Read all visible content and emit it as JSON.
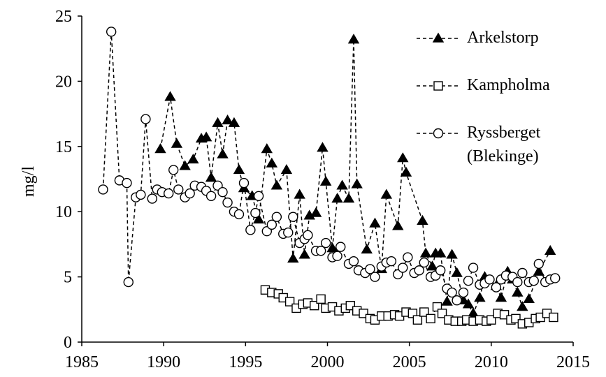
{
  "chart_data": {
    "type": "line",
    "ylabel": "mg/l",
    "xlim": [
      1985,
      2015
    ],
    "xticks": [
      1985,
      1990,
      1995,
      2000,
      2005,
      2010,
      2015
    ],
    "ylim": [
      0,
      25
    ],
    "yticks": [
      0,
      5,
      10,
      15,
      20,
      25
    ],
    "grid": false,
    "legend": "top-right",
    "series": [
      {
        "name": "Arkelstorp",
        "color": "#000000",
        "marker": "triangle",
        "x": [
          1989.8,
          1990.4,
          1990.8,
          1991.3,
          1991.8,
          1992.3,
          1992.6,
          1992.9,
          1993.3,
          1993.6,
          1993.9,
          1994.3,
          1994.6,
          1994.9,
          1995.4,
          1995.8,
          1996.3,
          1996.6,
          1996.9,
          1997.5,
          1997.9,
          1998.3,
          1998.6,
          1998.9,
          1999.3,
          1999.7,
          1999.9,
          2000.3,
          2000.6,
          2000.9,
          2001.3,
          2001.6,
          2001.8,
          2002.4,
          2002.9,
          2003.3,
          2003.6,
          2004.3,
          2004.6,
          2004.8,
          2005.8,
          2006.0,
          2006.4,
          2006.6,
          2006.9,
          2007.3,
          2007.6,
          2007.9,
          2008.3,
          2008.6,
          2008.9,
          2009.3,
          2009.6,
          2010.3,
          2010.6,
          2011.0,
          2011.3,
          2011.6,
          2011.9,
          2012.3,
          2012.9,
          2013.6
        ],
        "values": [
          14.8,
          18.8,
          15.2,
          13.5,
          14.0,
          15.6,
          15.7,
          12.6,
          16.8,
          14.4,
          17.0,
          16.8,
          13.2,
          11.8,
          11.2,
          9.4,
          14.8,
          13.7,
          12.0,
          13.2,
          6.4,
          11.3,
          6.7,
          9.7,
          9.9,
          14.9,
          12.3,
          7.2,
          11.0,
          12.0,
          11.0,
          23.2,
          12.1,
          7.1,
          9.1,
          5.6,
          11.3,
          8.9,
          14.1,
          13.0,
          9.3,
          6.8,
          5.8,
          6.8,
          6.8,
          3.1,
          6.7,
          5.3,
          3.2,
          2.9,
          2.2,
          3.4,
          5.0,
          4.3,
          3.4,
          5.4,
          4.8,
          3.8,
          2.7,
          3.3,
          5.4,
          7.0
        ]
      },
      {
        "name": "Kampholma",
        "color": "#000000",
        "marker": "square",
        "x": [
          1996.2,
          1996.6,
          1997.0,
          1997.3,
          1997.7,
          1998.1,
          1998.5,
          1998.8,
          1999.2,
          1999.6,
          1999.9,
          2000.3,
          2000.7,
          2001.1,
          2001.4,
          2001.8,
          2002.2,
          2002.6,
          2002.9,
          2003.3,
          2003.7,
          2004.1,
          2004.4,
          2004.8,
          2005.2,
          2005.5,
          2005.9,
          2006.3,
          2006.7,
          2007.0,
          2007.4,
          2007.8,
          2008.2,
          2008.5,
          2008.9,
          2009.3,
          2009.7,
          2010.0,
          2010.4,
          2010.8,
          2011.2,
          2011.5,
          2011.9,
          2012.3,
          2012.7,
          2013.0,
          2013.4,
          2013.8
        ],
        "values": [
          4.0,
          3.8,
          3.7,
          3.4,
          3.1,
          2.6,
          2.9,
          3.0,
          2.8,
          3.3,
          2.6,
          2.7,
          2.4,
          2.6,
          2.8,
          2.4,
          2.2,
          1.8,
          1.7,
          2.0,
          2.0,
          2.1,
          2.0,
          2.3,
          2.2,
          1.7,
          2.3,
          1.8,
          2.7,
          2.2,
          1.7,
          1.6,
          1.6,
          1.7,
          1.6,
          1.7,
          1.6,
          1.7,
          2.2,
          2.1,
          1.7,
          1.8,
          1.4,
          1.5,
          1.8,
          1.9,
          2.2,
          1.9
        ]
      },
      {
        "name": "Ryssberget (Blekinge)",
        "color": "#000000",
        "marker": "circle",
        "x": [
          1986.3,
          1986.8,
          1987.3,
          1987.75,
          1987.85,
          1988.3,
          1988.6,
          1988.9,
          1989.3,
          1989.6,
          1989.9,
          1990.3,
          1990.6,
          1990.9,
          1991.3,
          1991.6,
          1991.9,
          1992.3,
          1992.6,
          1992.9,
          1993.3,
          1993.6,
          1993.9,
          1994.3,
          1994.6,
          1994.9,
          1995.3,
          1995.6,
          1995.8,
          1996.3,
          1996.6,
          1996.9,
          1997.3,
          1997.6,
          1997.9,
          1998.3,
          1998.6,
          1998.8,
          1999.3,
          1999.6,
          1999.9,
          2000.3,
          2000.6,
          2000.8,
          2001.3,
          2001.6,
          2001.9,
          2002.3,
          2002.6,
          2002.9,
          2003.3,
          2003.6,
          2003.9,
          2004.3,
          2004.6,
          2004.9,
          2005.3,
          2005.6,
          2005.9,
          2006.3,
          2006.6,
          2006.9,
          2007.3,
          2007.6,
          2007.9,
          2008.3,
          2008.6,
          2008.9,
          2009.3,
          2009.6,
          2009.9,
          2010.3,
          2010.6,
          2010.9,
          2011.3,
          2011.6,
          2011.9,
          2012.3,
          2012.6,
          2012.9,
          2013.3,
          2013.6,
          2013.9
        ],
        "values": [
          11.7,
          23.8,
          12.4,
          12.2,
          4.6,
          11.1,
          11.3,
          17.1,
          11.0,
          11.7,
          11.5,
          11.4,
          13.2,
          11.7,
          11.1,
          11.4,
          12.0,
          11.9,
          11.6,
          11.2,
          12.0,
          11.5,
          10.7,
          10.0,
          9.8,
          12.2,
          8.6,
          9.9,
          11.2,
          8.5,
          9.0,
          9.6,
          8.3,
          8.4,
          9.6,
          7.6,
          7.9,
          8.2,
          7.0,
          7.0,
          7.6,
          6.5,
          6.6,
          7.3,
          6.0,
          6.2,
          5.5,
          5.3,
          5.6,
          5.0,
          5.8,
          6.1,
          6.2,
          5.2,
          5.7,
          6.5,
          5.3,
          5.5,
          6.1,
          5.0,
          5.1,
          5.5,
          4.1,
          3.8,
          3.2,
          3.8,
          4.7,
          5.7,
          4.4,
          4.5,
          4.8,
          4.2,
          4.8,
          5.1,
          5.0,
          4.6,
          5.3,
          4.6,
          4.7,
          6.0,
          4.6,
          4.8,
          4.9
        ]
      }
    ]
  }
}
